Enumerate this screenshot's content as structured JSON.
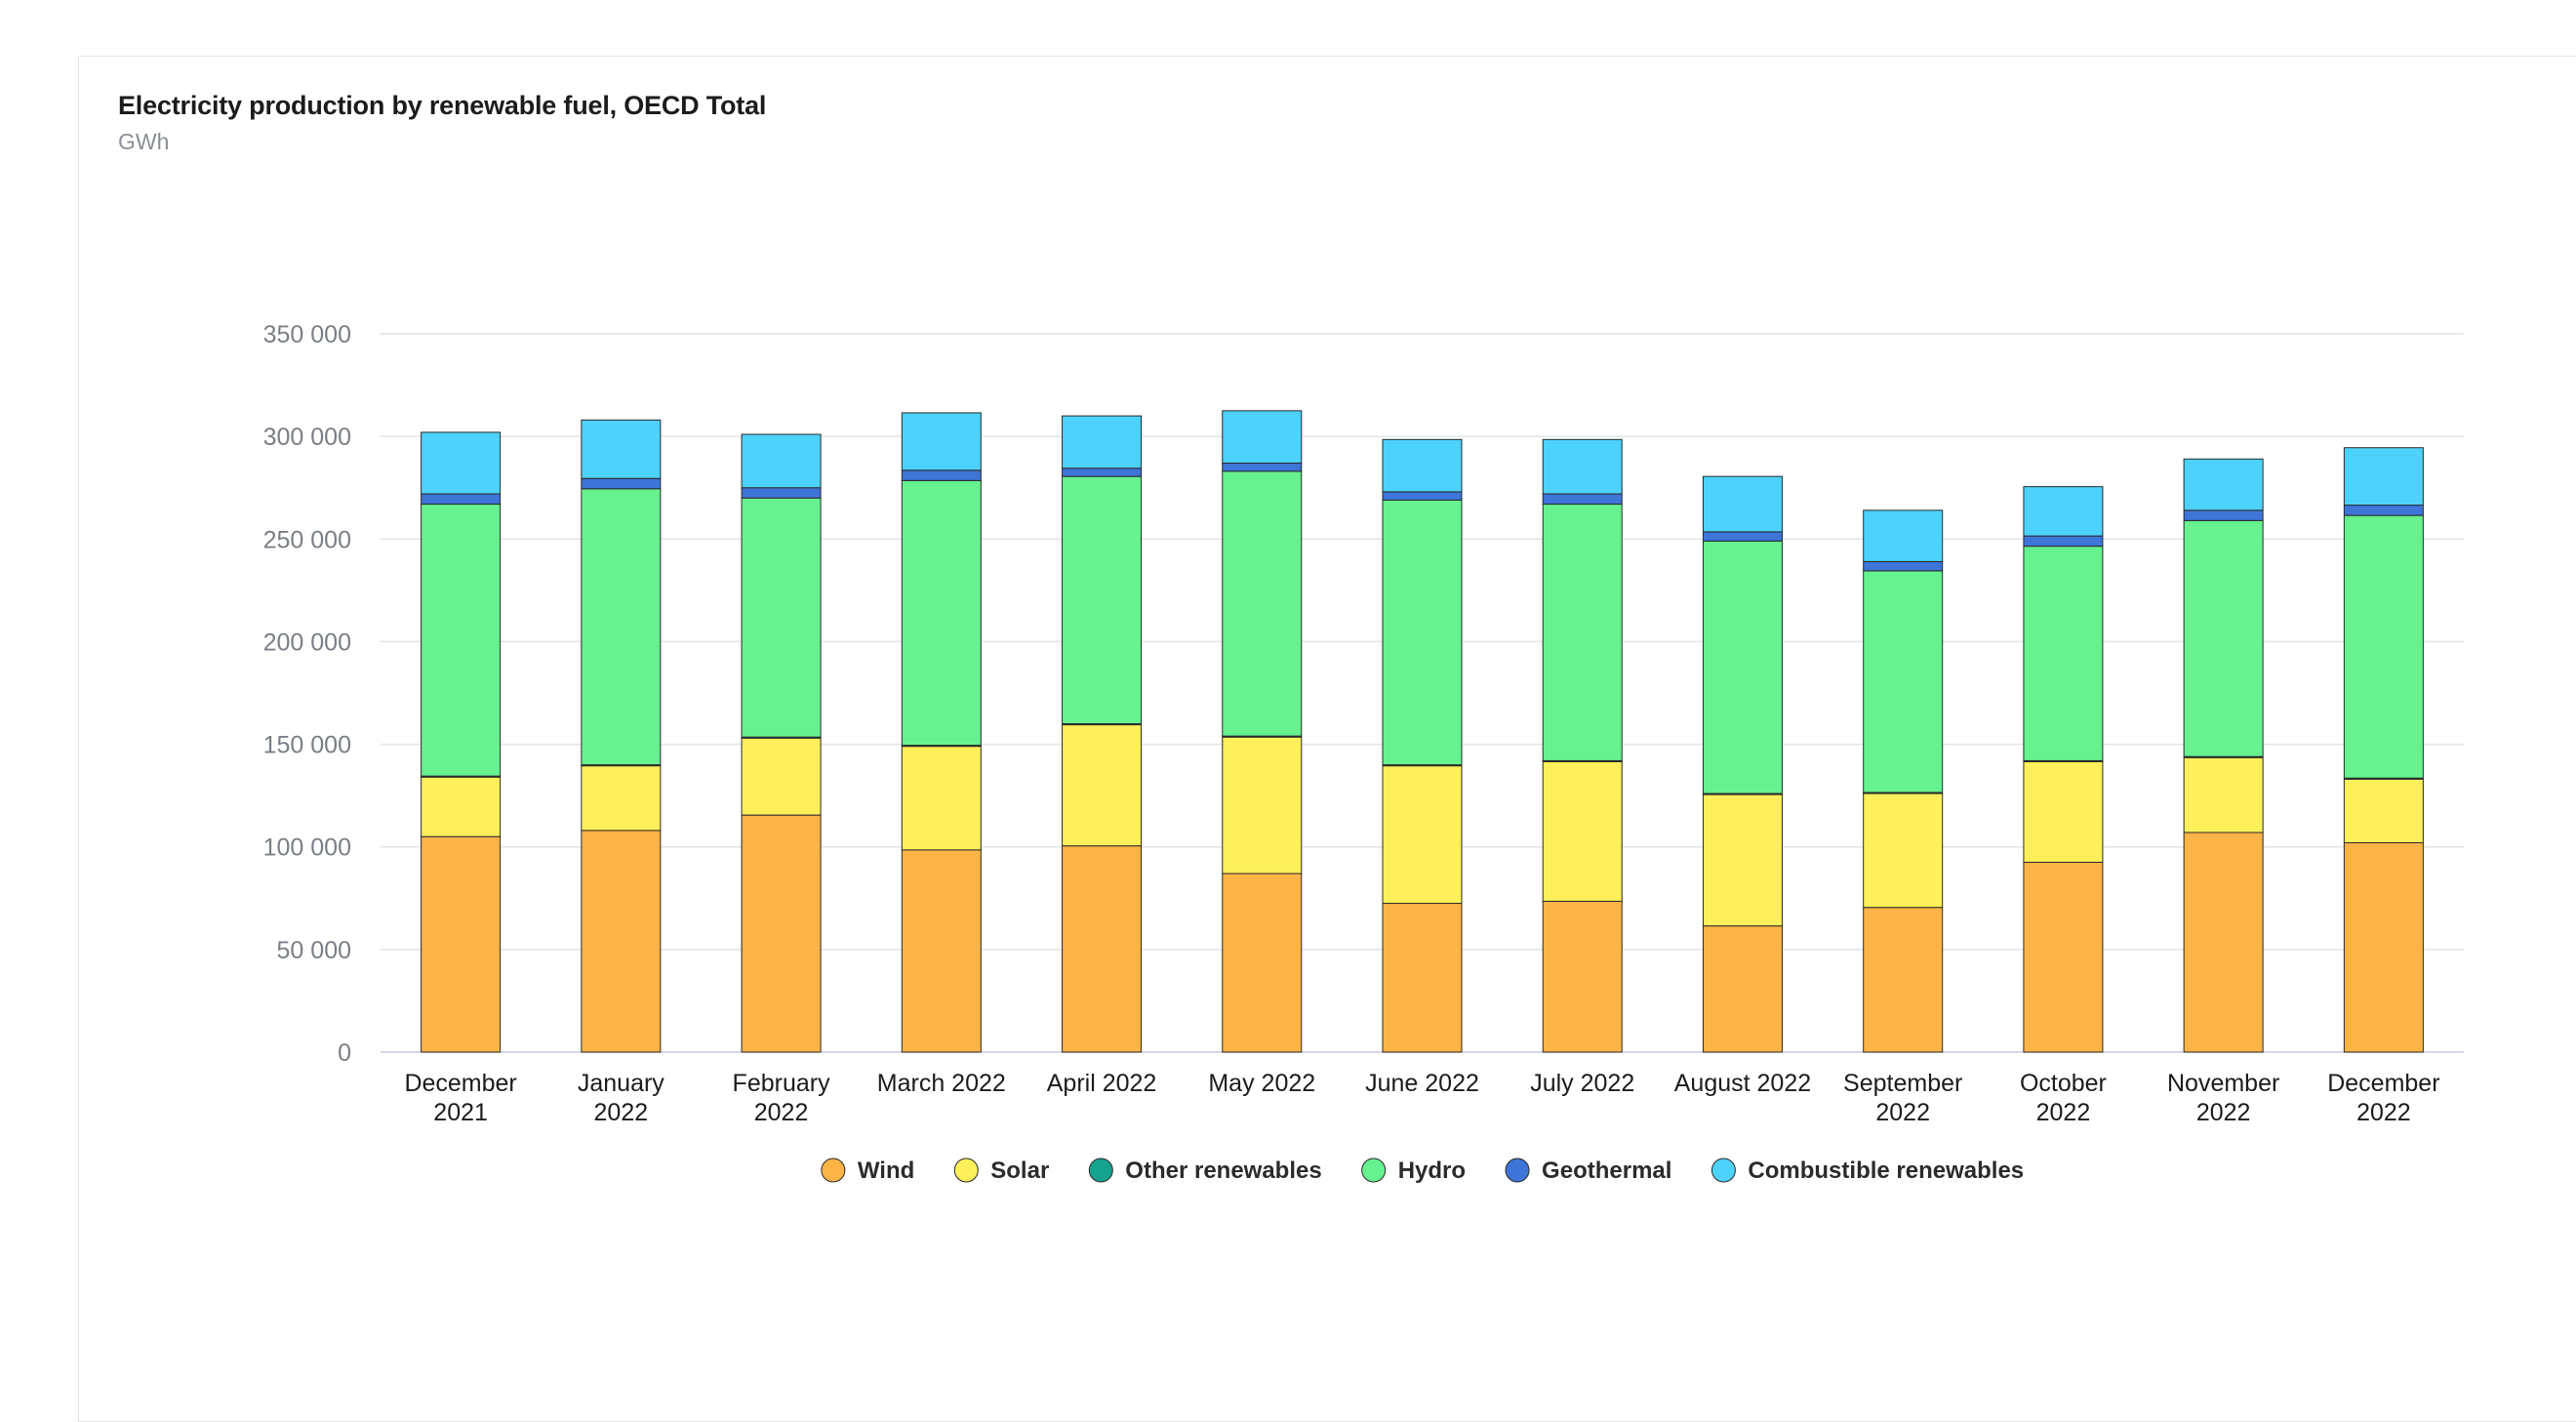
{
  "header": {
    "title": "Electricity production by renewable fuel, OECD Total",
    "unit": "GWh"
  },
  "chart_data": {
    "type": "bar",
    "stacked": true,
    "title": "Electricity production by renewable fuel, OECD Total",
    "ylabel": "GWh",
    "ylim": [
      0,
      350000
    ],
    "yticks": [
      0,
      50000,
      100000,
      150000,
      200000,
      250000,
      300000,
      350000
    ],
    "ytick_labels": [
      "0",
      "50 000",
      "100 000",
      "150 000",
      "200 000",
      "250 000",
      "300 000",
      "350 000"
    ],
    "grid": true,
    "legend_position": "bottom",
    "categories": [
      [
        "December",
        "2021"
      ],
      [
        "January",
        "2022"
      ],
      [
        "February",
        "2022"
      ],
      [
        "March 2022"
      ],
      [
        "April 2022"
      ],
      [
        "May 2022"
      ],
      [
        "June 2022"
      ],
      [
        "July 2022"
      ],
      [
        "August 2022"
      ],
      [
        "September",
        "2022"
      ],
      [
        "October",
        "2022"
      ],
      [
        "November",
        "2022"
      ],
      [
        "December",
        "2022"
      ]
    ],
    "series": [
      {
        "name": "Wind",
        "color": "#fdb447",
        "values": [
          105000,
          108000,
          115500,
          98500,
          100500,
          87000,
          72500,
          73500,
          61500,
          70500,
          92500,
          107000,
          102000
        ]
      },
      {
        "name": "Solar",
        "color": "#fdf05a",
        "values": [
          29000,
          31500,
          37500,
          50500,
          59000,
          66500,
          67000,
          68000,
          64000,
          55500,
          49000,
          36500,
          31000
        ]
      },
      {
        "name": "Other renewables",
        "color": "#14a38e",
        "values": [
          500,
          500,
          500,
          500,
          500,
          500,
          500,
          500,
          500,
          500,
          500,
          500,
          500
        ]
      },
      {
        "name": "Hydro",
        "color": "#66f28f",
        "values": [
          132500,
          134500,
          116500,
          129000,
          120500,
          129000,
          129000,
          125000,
          123000,
          108000,
          104500,
          115000,
          128000
        ]
      },
      {
        "name": "Geothermal",
        "color": "#3d75d8",
        "values": [
          5000,
          5000,
          5000,
          5000,
          4000,
          4000,
          4000,
          5000,
          4500,
          4500,
          5000,
          5000,
          5000
        ]
      },
      {
        "name": "Combustible renewables",
        "color": "#4dd2fd",
        "values": [
          30000,
          28500,
          26000,
          28000,
          25500,
          25500,
          25500,
          26500,
          27000,
          25000,
          24000,
          25000,
          28000
        ]
      }
    ]
  }
}
